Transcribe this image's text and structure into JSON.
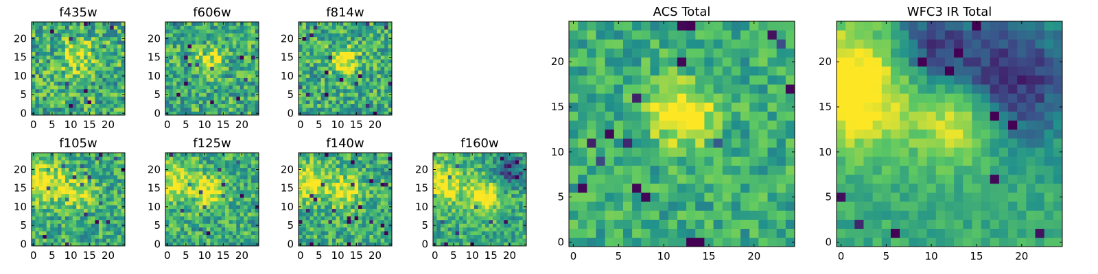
{
  "figure": {
    "colormap": [
      "#440154",
      "#3b528b",
      "#21918c",
      "#5ec962",
      "#fde725"
    ],
    "colormap_name": "viridis"
  },
  "chart_data": [
    {
      "type": "heatmap",
      "title": "f435w",
      "size": 25,
      "xticks": [
        "0",
        "5",
        "10",
        "15",
        "20"
      ],
      "yticks": [
        "0",
        "5",
        "10",
        "15",
        "20"
      ],
      "xlim": [
        0,
        25
      ],
      "ylim": [
        0,
        25
      ],
      "seed": 11,
      "noise": 0.55,
      "blobs": [
        [
          12,
          15,
          3.5,
          0.25
        ]
      ]
    },
    {
      "type": "heatmap",
      "title": "f606w",
      "size": 25,
      "xticks": [
        "0",
        "5",
        "10",
        "15",
        "20"
      ],
      "yticks": [
        "0",
        "5",
        "10",
        "15",
        "20"
      ],
      "xlim": [
        0,
        25
      ],
      "ylim": [
        0,
        25
      ],
      "seed": 23,
      "noise": 0.5,
      "blobs": [
        [
          11,
          14,
          2.2,
          0.45
        ]
      ]
    },
    {
      "type": "heatmap",
      "title": "f814w",
      "size": 25,
      "xticks": [
        "0",
        "5",
        "10",
        "15",
        "20"
      ],
      "yticks": [
        "0",
        "5",
        "10",
        "15",
        "20"
      ],
      "xlim": [
        0,
        25
      ],
      "ylim": [
        0,
        25
      ],
      "seed": 37,
      "noise": 0.5,
      "blobs": [
        [
          12,
          14,
          2.5,
          0.45
        ]
      ]
    },
    {
      "type": "heatmap",
      "title": "f105w",
      "size": 25,
      "xticks": [
        "0",
        "5",
        "10",
        "15",
        "20"
      ],
      "yticks": [
        "0",
        "5",
        "10",
        "15",
        "20"
      ],
      "xlim": [
        0,
        25
      ],
      "ylim": [
        0,
        25
      ],
      "seed": 41,
      "noise": 0.45,
      "blobs": [
        [
          2,
          17,
          4,
          0.4
        ],
        [
          12,
          14,
          3,
          0.3
        ]
      ]
    },
    {
      "type": "heatmap",
      "title": "f125w",
      "size": 25,
      "xticks": [
        "0",
        "5",
        "10",
        "15",
        "20"
      ],
      "yticks": [
        "0",
        "5",
        "10",
        "15",
        "20"
      ],
      "xlim": [
        0,
        25
      ],
      "ylim": [
        0,
        25
      ],
      "seed": 53,
      "noise": 0.45,
      "blobs": [
        [
          2,
          17,
          4,
          0.35
        ],
        [
          12,
          14,
          3,
          0.35
        ]
      ]
    },
    {
      "type": "heatmap",
      "title": "f140w",
      "size": 25,
      "xticks": [
        "0",
        "5",
        "10",
        "15",
        "20"
      ],
      "yticks": [
        "0",
        "5",
        "10",
        "15",
        "20"
      ],
      "xlim": [
        0,
        25
      ],
      "ylim": [
        0,
        25
      ],
      "seed": 67,
      "noise": 0.45,
      "blobs": [
        [
          2,
          17,
          4,
          0.35
        ],
        [
          12,
          14,
          3,
          0.35
        ]
      ]
    },
    {
      "type": "heatmap",
      "title": "f160w",
      "size": 25,
      "xticks": [
        "0",
        "5",
        "10",
        "15",
        "20"
      ],
      "yticks": [
        "0",
        "5",
        "10",
        "15",
        "20"
      ],
      "xlim": [
        0,
        25
      ],
      "ylim": [
        0,
        25
      ],
      "seed": 79,
      "noise": 0.4,
      "blobs": [
        [
          2,
          16,
          4,
          0.4
        ],
        [
          13,
          13,
          3,
          0.45
        ]
      ],
      "holes": [
        [
          20,
          20,
          3,
          0.4
        ]
      ]
    },
    {
      "type": "heatmap",
      "title": "ACS Total",
      "size": 25,
      "xticks": [
        "0",
        "5",
        "10",
        "15",
        "20"
      ],
      "yticks": [
        "0",
        "5",
        "10",
        "15",
        "20"
      ],
      "xlim": [
        0,
        25
      ],
      "ylim": [
        0,
        25
      ],
      "seed": 97,
      "noise": 0.35,
      "blobs": [
        [
          12,
          14,
          2.5,
          0.45
        ]
      ],
      "dark_pixels": [
        [
          1,
          6
        ],
        [
          7,
          6
        ],
        [
          8,
          5
        ],
        [
          4,
          12
        ],
        [
          12,
          24
        ],
        [
          24,
          17
        ],
        [
          12,
          20
        ]
      ]
    },
    {
      "type": "heatmap",
      "title": "WFC3 IR Total",
      "size": 25,
      "xticks": [
        "0",
        "5",
        "10",
        "15",
        "20"
      ],
      "yticks": [
        "0",
        "5",
        "10",
        "15",
        "20"
      ],
      "xlim": [
        0,
        25
      ],
      "ylim": [
        0,
        25
      ],
      "seed": 113,
      "noise": 0.2,
      "blobs": [
        [
          1,
          17,
          4.5,
          0.55
        ],
        [
          13,
          13,
          3,
          0.45
        ]
      ],
      "holes": [
        [
          19,
          18,
          5,
          0.5
        ],
        [
          10,
          22,
          3,
          0.4
        ]
      ]
    }
  ]
}
